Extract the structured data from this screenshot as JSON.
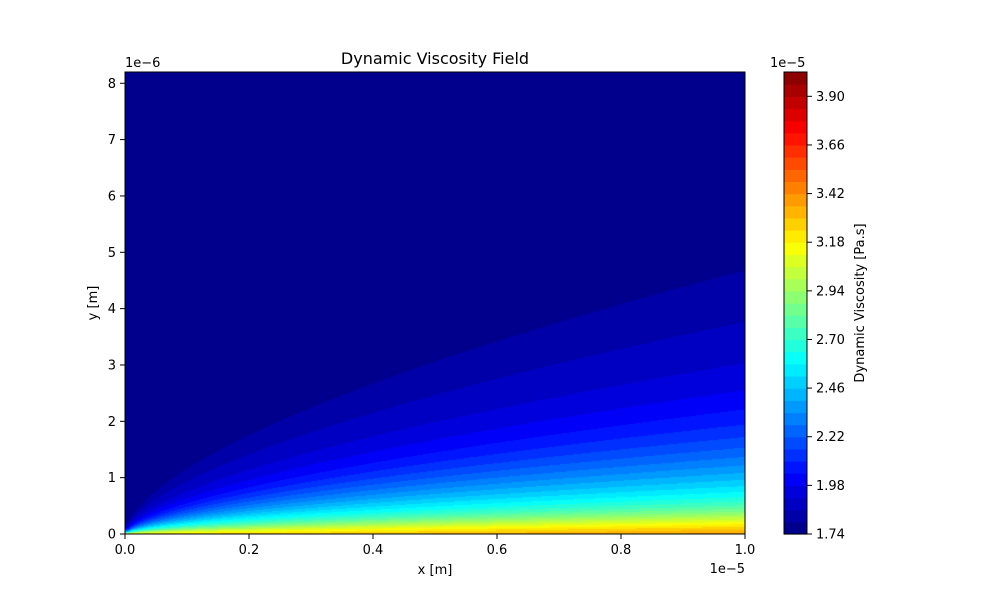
{
  "chart_data": {
    "type": "heatmap",
    "title": "Dynamic Viscosity Field",
    "xlabel": "x [m]",
    "ylabel": "y [m]",
    "x_offset_text": "1e−5",
    "y_offset_text": "1e−6",
    "xlim": [
      0.0,
      1.0
    ],
    "ylim": [
      0,
      8.2
    ],
    "x_ticks": [
      0.0,
      0.2,
      0.4,
      0.6,
      0.8,
      1.0
    ],
    "x_tick_labels": [
      "0.0",
      "0.2",
      "0.4",
      "0.6",
      "0.8",
      "1.0"
    ],
    "y_ticks": [
      0,
      1,
      2,
      3,
      4,
      5,
      6,
      7,
      8
    ],
    "y_tick_labels": [
      "0",
      "1",
      "2",
      "3",
      "4",
      "5",
      "6",
      "7",
      "8"
    ],
    "grid": false,
    "colormap": "jet",
    "colorbar": {
      "label": "Dynamic Viscosity [Pa.s]",
      "offset_text": "1e−5",
      "vmin": 1.74,
      "vmax": 4.02,
      "ticks": [
        1.74,
        1.98,
        2.22,
        2.46,
        2.7,
        2.94,
        3.18,
        3.42,
        3.66,
        3.9
      ],
      "tick_labels": [
        "1.74",
        "1.98",
        "2.22",
        "2.46",
        "2.70",
        "2.94",
        "3.18",
        "3.42",
        "3.66",
        "3.90"
      ],
      "levels": 38
    },
    "field": {
      "description_free": "",
      "freestream_value": 1.74,
      "wall_value": 4.02,
      "boundary_layer_edge_y_at_x1": 5.1,
      "edge_exponent": 0.62
    }
  }
}
